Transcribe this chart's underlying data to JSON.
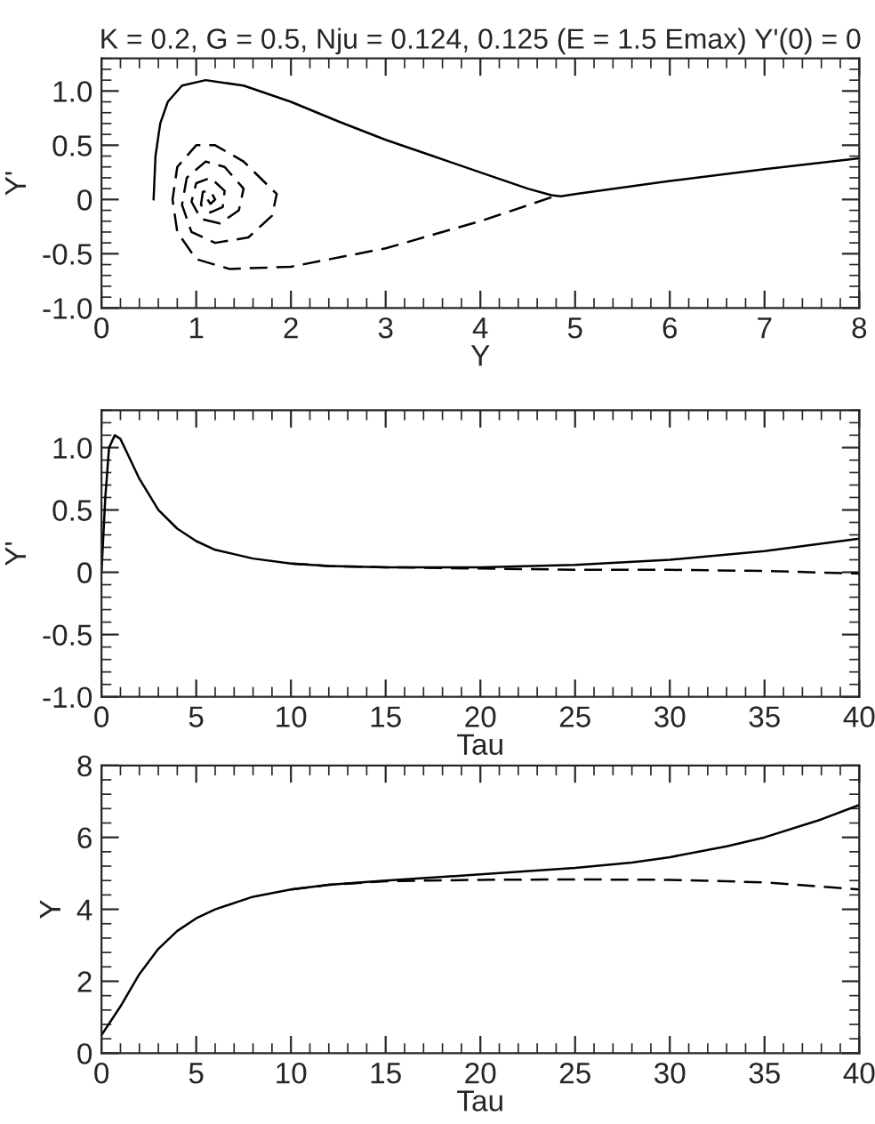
{
  "chart_data": [
    {
      "type": "line",
      "title": "K = 0.2, G = 0.5, Nju = 0.124, 0.125 (E = 1.5 Emax) Y'(0) = 0",
      "xlabel": "Y",
      "ylabel": "Y'",
      "xlim": [
        0,
        8
      ],
      "xticks": [
        0,
        1,
        2,
        3,
        4,
        5,
        6,
        7,
        8
      ],
      "ylim": [
        -1.0,
        1.3
      ],
      "yticks": [
        {
          "value": -1.0,
          "label": "-1.0"
        },
        {
          "value": -0.5,
          "label": "-0.5"
        },
        0,
        {
          "value": 0.5,
          "label": "0.5"
        },
        {
          "value": 1.0,
          "label": "1.0"
        }
      ],
      "grid": false,
      "legend": false,
      "series": [
        {
          "color": "#000000",
          "line_style": "solid",
          "x": [
            0.55,
            0.57,
            0.62,
            0.7,
            0.85,
            1.1,
            1.5,
            2.0,
            2.5,
            3.0,
            3.5,
            4.0,
            4.5,
            4.75,
            4.85,
            5.0,
            6.0,
            7.0,
            8.0
          ],
          "values": [
            0.0,
            0.4,
            0.7,
            0.9,
            1.05,
            1.1,
            1.05,
            0.9,
            0.72,
            0.55,
            0.4,
            0.25,
            0.1,
            0.04,
            0.03,
            0.05,
            0.17,
            0.28,
            0.38
          ]
        },
        {
          "color": "#000000",
          "line_style": "dashed",
          "x": [
            4.75,
            4.0,
            3.0,
            2.0,
            1.35,
            1.0,
            0.8,
            0.75,
            0.8,
            1.0,
            1.2,
            1.5,
            1.85,
            1.8,
            1.55,
            1.2,
            0.95,
            0.85,
            0.9,
            1.1,
            1.3,
            1.5,
            1.45,
            1.25,
            1.05,
            0.95,
            1.0,
            1.15,
            1.3,
            1.28,
            1.15,
            1.05,
            1.07,
            1.15,
            1.2,
            1.15,
            1.12
          ],
          "values": [
            0.02,
            -0.2,
            -0.45,
            -0.62,
            -0.64,
            -0.55,
            -0.3,
            0.0,
            0.3,
            0.5,
            0.5,
            0.35,
            0.05,
            -0.15,
            -0.35,
            -0.4,
            -0.3,
            -0.05,
            0.2,
            0.35,
            0.3,
            0.1,
            -0.1,
            -0.22,
            -0.18,
            -0.02,
            0.15,
            0.2,
            0.08,
            -0.07,
            -0.12,
            -0.05,
            0.07,
            0.08,
            0.0,
            -0.04,
            0.0
          ]
        }
      ]
    },
    {
      "type": "line",
      "xlabel": "Tau",
      "ylabel": "Y'",
      "xlim": [
        0,
        40
      ],
      "xticks": [
        0,
        5,
        10,
        15,
        20,
        25,
        30,
        35,
        40
      ],
      "ylim": [
        -1.0,
        1.3
      ],
      "yticks": [
        {
          "value": -1.0,
          "label": "-1.0"
        },
        {
          "value": -0.5,
          "label": "-0.5"
        },
        0,
        {
          "value": 0.5,
          "label": "0.5"
        },
        {
          "value": 1.0,
          "label": "1.0"
        }
      ],
      "grid": false,
      "legend": false,
      "series": [
        {
          "color": "#000000",
          "line_style": "solid",
          "x": [
            0,
            0.2,
            0.4,
            0.7,
            1,
            2,
            3,
            4,
            5,
            6,
            8,
            10,
            12,
            15,
            20,
            25,
            30,
            35,
            40
          ],
          "values": [
            0.0,
            0.6,
            1.0,
            1.1,
            1.07,
            0.75,
            0.5,
            0.35,
            0.25,
            0.18,
            0.11,
            0.07,
            0.05,
            0.04,
            0.04,
            0.06,
            0.1,
            0.17,
            0.27
          ]
        },
        {
          "color": "#000000",
          "line_style": "dashed",
          "x": [
            10,
            12,
            15,
            20,
            25,
            30,
            35,
            40
          ],
          "values": [
            0.07,
            0.05,
            0.04,
            0.03,
            0.02,
            0.02,
            0.01,
            -0.01
          ]
        }
      ]
    },
    {
      "type": "line",
      "xlabel": "Tau",
      "ylabel": "Y",
      "xlim": [
        0,
        40
      ],
      "xticks": [
        0,
        5,
        10,
        15,
        20,
        25,
        30,
        35,
        40
      ],
      "ylim": [
        0,
        8
      ],
      "yticks": [
        0,
        2,
        4,
        6,
        8
      ],
      "grid": false,
      "legend": false,
      "series": [
        {
          "color": "#000000",
          "line_style": "solid",
          "x": [
            0,
            1,
            2,
            3,
            4,
            5,
            6,
            8,
            10,
            12,
            15,
            20,
            25,
            28,
            30,
            33,
            35,
            38,
            40
          ],
          "values": [
            0.5,
            1.3,
            2.2,
            2.9,
            3.4,
            3.75,
            4.0,
            4.35,
            4.55,
            4.68,
            4.8,
            4.97,
            5.15,
            5.3,
            5.45,
            5.75,
            6.0,
            6.5,
            6.9
          ]
        },
        {
          "color": "#000000",
          "line_style": "dashed",
          "x": [
            10,
            12,
            15,
            20,
            25,
            30,
            35,
            40
          ],
          "values": [
            4.55,
            4.68,
            4.78,
            4.82,
            4.83,
            4.82,
            4.75,
            4.55
          ]
        }
      ]
    }
  ]
}
